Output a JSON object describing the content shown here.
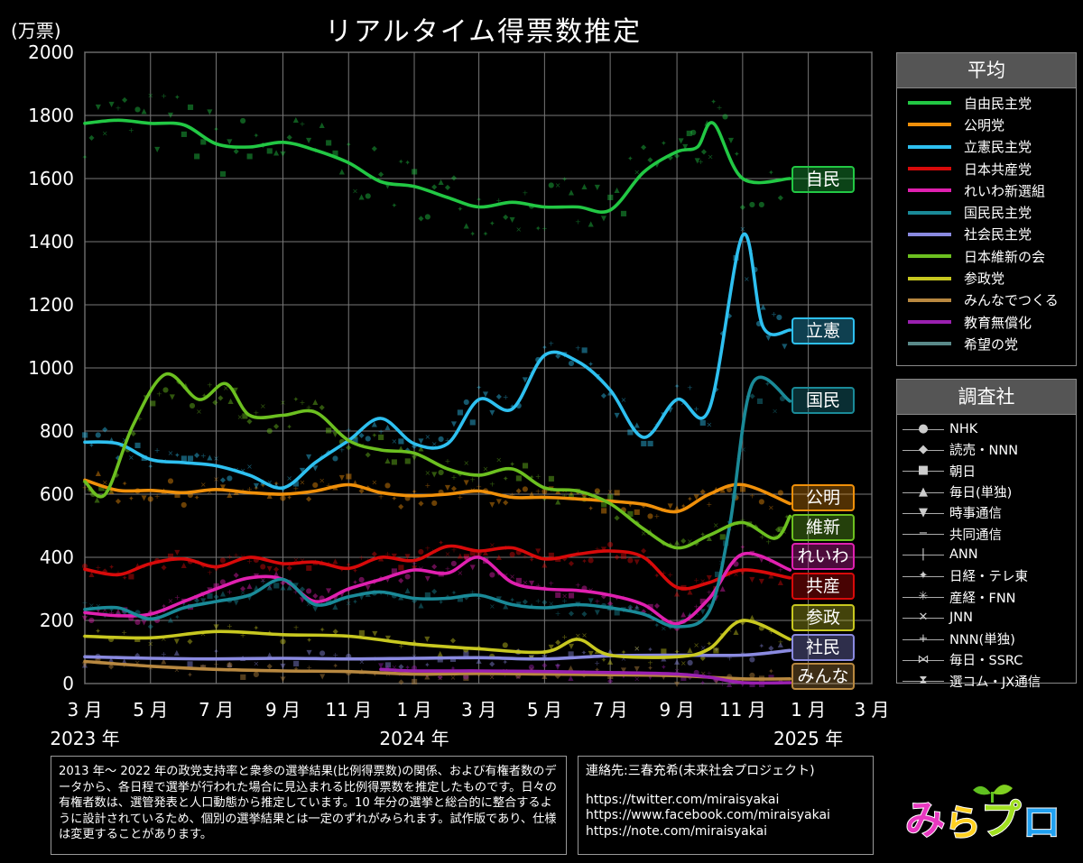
{
  "header": {
    "title": "リアルタイム得票数推定",
    "unit": "(万票)"
  },
  "legend_average": {
    "title": "平均",
    "items": [
      {
        "name": "自由民主党",
        "color": "#22c844"
      },
      {
        "name": "公明党",
        "color": "#f0900a"
      },
      {
        "name": "立憲民主党",
        "color": "#2ec0f0"
      },
      {
        "name": "日本共産党",
        "color": "#d80a0a"
      },
      {
        "name": "れいわ新選組",
        "color": "#e020b0"
      },
      {
        "name": "国民民主党",
        "color": "#1a8a98"
      },
      {
        "name": "社会民主党",
        "color": "#8a8ae0"
      },
      {
        "name": "日本維新の会",
        "color": "#6cc020"
      },
      {
        "name": "参政党",
        "color": "#c8c820"
      },
      {
        "name": "みんなでつくる",
        "color": "#b88840"
      },
      {
        "name": "教育無償化",
        "color": "#9a20b0"
      },
      {
        "name": "希望の党",
        "color": "#5a8a8a"
      }
    ]
  },
  "legend_agency": {
    "title": "調査社",
    "items": [
      {
        "name": "NHK",
        "icon": "circle-icon",
        "symbol": "●"
      },
      {
        "name": "読売・NNN",
        "icon": "diamond-icon",
        "symbol": "◆"
      },
      {
        "name": "朝日",
        "icon": "square-icon",
        "symbol": "■"
      },
      {
        "name": "毎日(単独)",
        "icon": "triangle-up-icon",
        "symbol": "▲"
      },
      {
        "name": "時事通信",
        "icon": "triangle-down-icon",
        "symbol": "▼"
      },
      {
        "name": "共同通信",
        "icon": "dash-icon",
        "symbol": "−"
      },
      {
        "name": "ANN",
        "icon": "vbar-icon",
        "symbol": "|"
      },
      {
        "name": "日経・テレ東",
        "icon": "star4-icon",
        "symbol": "✦"
      },
      {
        "name": "産経・FNN",
        "icon": "asterisk-icon",
        "symbol": "✳"
      },
      {
        "name": "JNN",
        "icon": "cross-icon",
        "symbol": "✕"
      },
      {
        "name": "NNN(単独)",
        "icon": "plus-icon",
        "symbol": "+"
      },
      {
        "name": "毎日・SSRC",
        "icon": "bowtie-icon",
        "symbol": "⋈"
      },
      {
        "name": "選コム・JX通信",
        "icon": "hourglass-icon",
        "symbol": "⧗"
      }
    ]
  },
  "notes": {
    "description": "2013 年～ 2022 年の政党支持率と衆参の選挙結果(比例得票数)の関係、および有権者数のデータから、各日程で選挙が行われた場合に見込まれる比例得票数を推定したものです。日々の有権者数は、選管発表と人口動態から推定しています。10 年分の選挙と総合的に整合するように設計されているため、個別の選挙結果とは一定のずれがみられます。試作版であり、仕様は変更することがあります。",
    "contact_title": "連絡先:三春充希(未来社会プロジェクト)",
    "links": [
      "https://twitter.com/miraisyakai",
      "https://www.facebook.com/miraisyakai",
      "https://note.com/miraisyakai"
    ]
  },
  "logo": {
    "text": "みらプロ"
  },
  "end_labels": [
    {
      "text": "自民",
      "color": "#22c844"
    },
    {
      "text": "立憲",
      "color": "#2ec0f0"
    },
    {
      "text": "国民",
      "color": "#1a8a98"
    },
    {
      "text": "公明",
      "color": "#f0900a"
    },
    {
      "text": "維新",
      "color": "#6cc020"
    },
    {
      "text": "れいわ",
      "color": "#e020b0"
    },
    {
      "text": "共産",
      "color": "#d80a0a"
    },
    {
      "text": "参政",
      "color": "#c8c820"
    },
    {
      "text": "社民",
      "color": "#8a8ae0"
    },
    {
      "text": "みんな",
      "color": "#b88840"
    }
  ],
  "chart_data": {
    "type": "line",
    "title": "リアルタイム得票数推定",
    "ylabel": "(万票)",
    "ylim": [
      0,
      2000
    ],
    "yticks": [
      "0",
      "200",
      "400",
      "600",
      "800",
      "1000",
      "1200",
      "1400",
      "1600",
      "1800",
      "2000"
    ],
    "xlim": [
      "2023-03-01",
      "2025-03-01"
    ],
    "xticks": [
      "3 月",
      "5 月",
      "7 月",
      "9 月",
      "11 月",
      "1 月",
      "3 月",
      "5 月",
      "7 月",
      "9 月",
      "11 月",
      "1 月",
      "3 月"
    ],
    "xticks_dates": [
      "2023-03-01",
      "2023-05-01",
      "2023-07-01",
      "2023-09-01",
      "2023-11-01",
      "2024-01-01",
      "2024-03-01",
      "2024-05-01",
      "2024-07-01",
      "2024-09-01",
      "2024-11-01",
      "2025-01-01",
      "2025-03-01"
    ],
    "year_labels": [
      {
        "date": "2023-03-01",
        "text": "2023 年"
      },
      {
        "date": "2024-01-01",
        "text": "2024 年"
      },
      {
        "date": "2025-01-01",
        "text": "2025 年"
      }
    ],
    "grid": true,
    "legend_position": "right",
    "series": [
      {
        "name": "自由民主党",
        "color": "#22c844",
        "x": [
          "2023-03-01",
          "2023-04-01",
          "2023-05-01",
          "2023-06-01",
          "2023-07-01",
          "2023-08-01",
          "2023-09-01",
          "2023-10-01",
          "2023-11-01",
          "2023-12-01",
          "2024-01-01",
          "2024-02-01",
          "2024-03-01",
          "2024-04-01",
          "2024-05-01",
          "2024-06-01",
          "2024-07-01",
          "2024-08-01",
          "2024-09-01",
          "2024-09-20",
          "2024-10-05",
          "2024-11-01",
          "2024-12-15"
        ],
        "values": [
          1775,
          1785,
          1775,
          1770,
          1710,
          1700,
          1715,
          1690,
          1650,
          1590,
          1575,
          1540,
          1510,
          1525,
          1510,
          1510,
          1500,
          1620,
          1685,
          1700,
          1775,
          1600,
          1600
        ]
      },
      {
        "name": "公明党",
        "color": "#f0900a",
        "x": [
          "2023-03-01",
          "2023-04-01",
          "2023-05-01",
          "2023-06-01",
          "2023-07-01",
          "2023-08-01",
          "2023-09-01",
          "2023-10-01",
          "2023-11-01",
          "2023-12-01",
          "2024-01-01",
          "2024-02-01",
          "2024-03-01",
          "2024-04-01",
          "2024-05-01",
          "2024-06-01",
          "2024-07-01",
          "2024-08-01",
          "2024-09-01",
          "2024-10-01",
          "2024-11-01",
          "2024-12-15"
        ],
        "values": [
          645,
          612,
          612,
          605,
          615,
          605,
          600,
          610,
          630,
          605,
          595,
          600,
          610,
          590,
          590,
          585,
          578,
          568,
          545,
          600,
          630,
          570
        ]
      },
      {
        "name": "立憲民主党",
        "color": "#2ec0f0",
        "x": [
          "2023-03-01",
          "2023-04-01",
          "2023-05-01",
          "2023-06-01",
          "2023-07-01",
          "2023-08-01",
          "2023-09-01",
          "2023-10-01",
          "2023-11-01",
          "2023-12-01",
          "2024-01-01",
          "2024-02-01",
          "2024-03-01",
          "2024-04-01",
          "2024-05-01",
          "2024-06-01",
          "2024-07-01",
          "2024-08-01",
          "2024-09-01",
          "2024-10-01",
          "2024-11-01",
          "2024-11-20",
          "2024-12-15"
        ],
        "values": [
          765,
          760,
          710,
          700,
          690,
          660,
          620,
          700,
          770,
          840,
          760,
          760,
          900,
          870,
          1040,
          1020,
          930,
          780,
          900,
          870,
          1420,
          1130,
          1120
        ]
      },
      {
        "name": "日本共産党",
        "color": "#d80a0a",
        "x": [
          "2023-03-01",
          "2023-04-01",
          "2023-05-01",
          "2023-06-01",
          "2023-07-01",
          "2023-08-01",
          "2023-09-01",
          "2023-10-01",
          "2023-11-01",
          "2023-12-01",
          "2024-01-01",
          "2024-02-01",
          "2024-03-01",
          "2024-04-01",
          "2024-05-01",
          "2024-06-01",
          "2024-07-01",
          "2024-08-01",
          "2024-09-01",
          "2024-10-01",
          "2024-11-01",
          "2024-12-15"
        ],
        "values": [
          362,
          345,
          380,
          395,
          370,
          400,
          380,
          385,
          365,
          400,
          390,
          435,
          420,
          430,
          395,
          410,
          420,
          400,
          305,
          320,
          360,
          335
        ]
      },
      {
        "name": "れいわ新選組",
        "color": "#e020b0",
        "x": [
          "2023-03-01",
          "2023-04-01",
          "2023-05-01",
          "2023-06-01",
          "2023-07-01",
          "2023-08-01",
          "2023-09-01",
          "2023-10-01",
          "2023-11-01",
          "2023-12-01",
          "2024-01-01",
          "2024-02-01",
          "2024-03-01",
          "2024-04-01",
          "2024-05-01",
          "2024-06-01",
          "2024-07-01",
          "2024-08-01",
          "2024-09-01",
          "2024-10-01",
          "2024-11-01",
          "2024-12-15"
        ],
        "values": [
          225,
          215,
          220,
          260,
          300,
          335,
          330,
          260,
          300,
          330,
          360,
          350,
          400,
          320,
          300,
          295,
          280,
          250,
          190,
          270,
          410,
          360
        ]
      },
      {
        "name": "国民民主党",
        "color": "#1a8a98",
        "x": [
          "2023-03-01",
          "2023-04-01",
          "2023-05-01",
          "2023-06-01",
          "2023-07-01",
          "2023-08-01",
          "2023-09-01",
          "2023-10-01",
          "2023-11-01",
          "2023-12-01",
          "2024-01-01",
          "2024-02-01",
          "2024-03-01",
          "2024-04-01",
          "2024-05-01",
          "2024-06-01",
          "2024-07-01",
          "2024-08-01",
          "2024-09-01",
          "2024-10-01",
          "2024-10-20",
          "2024-11-10",
          "2024-12-15"
        ],
        "values": [
          235,
          240,
          205,
          240,
          260,
          280,
          330,
          250,
          275,
          290,
          270,
          270,
          280,
          250,
          240,
          250,
          240,
          220,
          180,
          230,
          500,
          950,
          895
        ]
      },
      {
        "name": "社会民主党",
        "color": "#8a8ae0",
        "x": [
          "2023-03-01",
          "2023-05-01",
          "2023-07-01",
          "2023-09-01",
          "2023-11-01",
          "2024-01-01",
          "2024-03-01",
          "2024-05-01",
          "2024-07-01",
          "2024-09-01",
          "2024-11-01",
          "2024-12-15"
        ],
        "values": [
          85,
          80,
          78,
          80,
          78,
          80,
          82,
          78,
          88,
          90,
          90,
          105
        ]
      },
      {
        "name": "日本維新の会",
        "color": "#6cc020",
        "x": [
          "2023-03-01",
          "2023-03-20",
          "2023-04-15",
          "2023-05-15",
          "2023-06-15",
          "2023-07-10",
          "2023-08-01",
          "2023-09-01",
          "2023-10-01",
          "2023-11-01",
          "2023-12-01",
          "2024-01-01",
          "2024-02-01",
          "2024-03-01",
          "2024-04-01",
          "2024-05-01",
          "2024-06-01",
          "2024-07-01",
          "2024-08-01",
          "2024-09-01",
          "2024-10-01",
          "2024-11-01",
          "2024-12-01",
          "2024-12-15"
        ],
        "values": [
          640,
          600,
          820,
          980,
          900,
          950,
          850,
          850,
          860,
          770,
          740,
          730,
          680,
          660,
          680,
          620,
          610,
          570,
          490,
          430,
          470,
          510,
          460,
          530
        ]
      },
      {
        "name": "参政党",
        "color": "#c8c820",
        "x": [
          "2023-03-01",
          "2023-05-01",
          "2023-07-01",
          "2023-09-01",
          "2023-11-01",
          "2024-01-01",
          "2024-03-01",
          "2024-05-01",
          "2024-06-01",
          "2024-07-01",
          "2024-09-01",
          "2024-10-01",
          "2024-11-01",
          "2024-12-15"
        ],
        "values": [
          150,
          145,
          165,
          155,
          150,
          125,
          110,
          100,
          140,
          90,
          85,
          110,
          200,
          140
        ]
      },
      {
        "name": "みんなでつくる",
        "color": "#b88840",
        "x": [
          "2023-03-01",
          "2023-05-01",
          "2023-07-01",
          "2023-09-01",
          "2023-11-01",
          "2024-01-01",
          "2024-03-01",
          "2024-05-01",
          "2024-07-01",
          "2024-09-01",
          "2024-11-01",
          "2024-12-15"
        ],
        "values": [
          70,
          55,
          45,
          40,
          38,
          30,
          32,
          30,
          28,
          25,
          15,
          15
        ]
      },
      {
        "name": "教育無償化",
        "color": "#9a20b0",
        "x": [
          "2023-12-01",
          "2024-01-01",
          "2024-03-01",
          "2024-05-01",
          "2024-07-01",
          "2024-09-01",
          "2024-10-01",
          "2024-11-01",
          "2024-12-15"
        ],
        "values": [
          45,
          40,
          40,
          38,
          35,
          30,
          20,
          3,
          3
        ]
      }
    ]
  }
}
